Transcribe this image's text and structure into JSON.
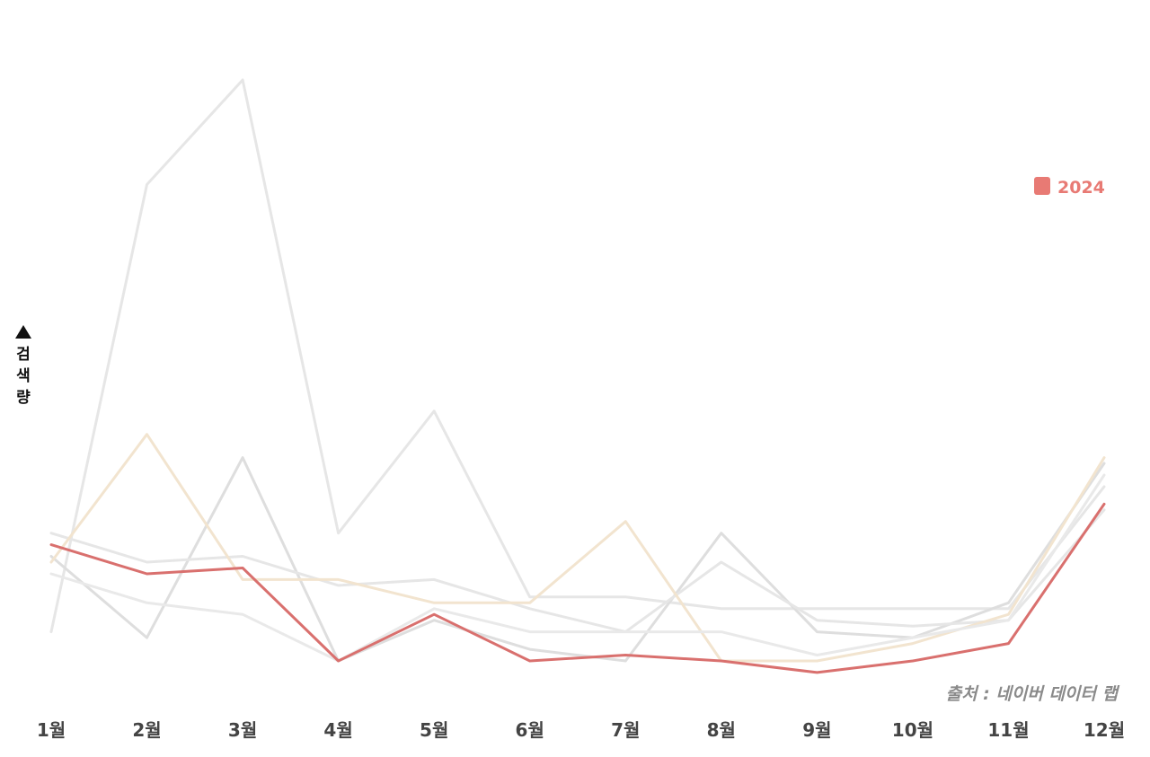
{
  "chart_data": {
    "type": "line",
    "categories": [
      "1월",
      "2월",
      "3월",
      "4월",
      "5월",
      "6월",
      "7월",
      "8월",
      "9월",
      "10월",
      "11월",
      "12월"
    ],
    "ylabel": "검색량",
    "ylabel_arrow": "▲",
    "source": "출처 : 네이버 데이터 랩",
    "legend": {
      "placement": "top-right",
      "label": "2024"
    },
    "ylim": [
      0,
      100
    ],
    "grid": false,
    "series": [
      {
        "highlight": false,
        "color": "#e6e6e6",
        "values": [
          5,
          82,
          100,
          22,
          43,
          11,
          11,
          9,
          9,
          9,
          9,
          30
        ]
      },
      {
        "highlight": false,
        "color": "#dedede",
        "values": [
          18,
          4,
          35,
          0,
          7,
          2,
          0,
          22,
          5,
          4,
          10,
          34
        ]
      },
      {
        "highlight": false,
        "color": "#e6e6e6",
        "values": [
          22,
          17,
          18,
          13,
          14,
          9,
          5,
          17,
          7,
          6,
          7,
          26
        ]
      },
      {
        "highlight": false,
        "color": "#f2e4cf",
        "values": [
          17,
          39,
          14,
          14,
          10,
          10,
          24,
          0,
          0,
          3,
          8,
          35
        ]
      },
      {
        "highlight": false,
        "color": "#e9e9e9",
        "values": [
          15,
          10,
          8,
          0,
          9,
          5,
          5,
          5,
          1,
          4,
          7,
          32
        ]
      },
      {
        "name": "2024",
        "highlight": true,
        "color": "#d9706e",
        "values": [
          20,
          15,
          16,
          0,
          8,
          0,
          1,
          0,
          -2,
          0,
          3,
          27
        ]
      }
    ]
  },
  "colors": {
    "accent": "#d9706e",
    "legend_swatch": "#e87a74",
    "muted_text": "#8a8a8a"
  }
}
